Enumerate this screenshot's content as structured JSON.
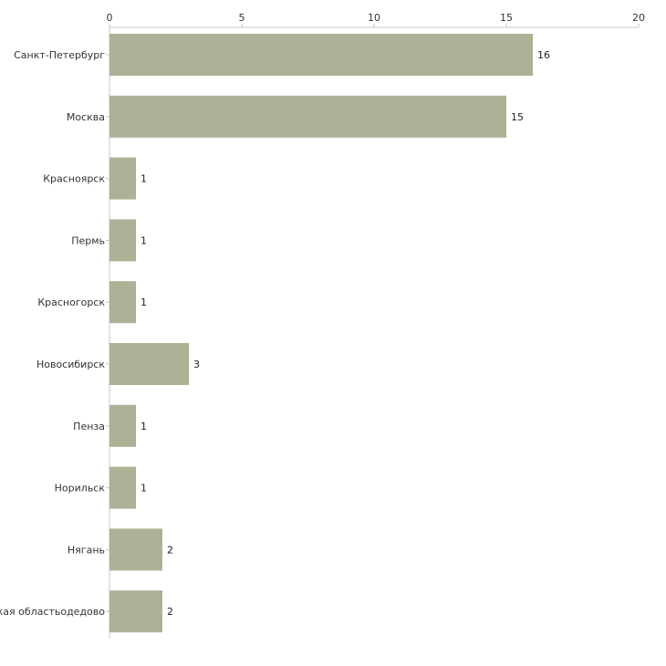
{
  "chart_data": {
    "type": "bar",
    "orientation": "horizontal",
    "title": "",
    "xlabel": "",
    "ylabel": "",
    "xlim": [
      0,
      20
    ],
    "xticks": [
      0,
      5,
      10,
      15,
      20
    ],
    "grid": false,
    "bar_color": "#adb196",
    "categories": [
      "Санкт-Петербург",
      "Москва",
      "Красноярск",
      "Пермь",
      "Красногорск",
      "Новосибирск",
      "Пенза",
      "Норильск",
      "Нягань",
      "ская областьодедово"
    ],
    "values": [
      16,
      15,
      1,
      1,
      1,
      3,
      1,
      1,
      2,
      2
    ]
  }
}
